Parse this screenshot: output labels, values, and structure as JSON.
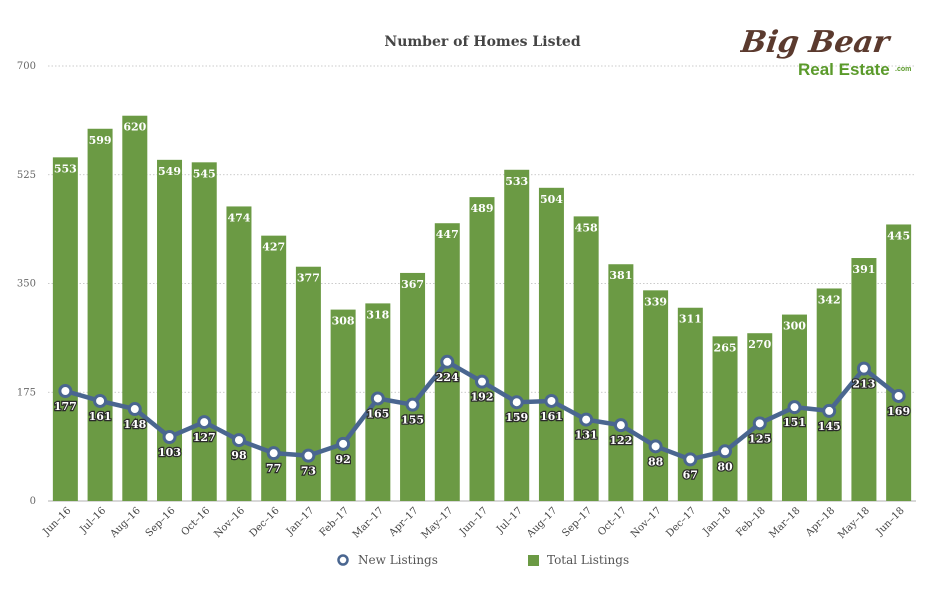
{
  "colors": {
    "bar": "#6b9a44",
    "line": "#4a6690",
    "point_fill": "#ffffff",
    "grid": "#bbbbbb",
    "logo_dark": "#5b3a2e",
    "logo_green": "#5a9a2a"
  },
  "logo": {
    "line1": "Big Bear",
    "line2": "Real Estate",
    "suffix": ".com"
  },
  "chart_data": {
    "type": "bar",
    "title": "Number of Homes Listed",
    "xlabel": "",
    "ylabel": "",
    "ylim": [
      0,
      700
    ],
    "yticks": [
      0,
      175,
      350,
      525,
      700
    ],
    "grid": true,
    "legend_position": "bottom",
    "categories": [
      "Jun–16",
      "Jul–16",
      "Aug–16",
      "Sep–16",
      "Oct–16",
      "Nov–16",
      "Dec–16",
      "Jan–17",
      "Feb–17",
      "Mar–17",
      "Apr–17",
      "May–17",
      "Jun–17",
      "Jul–17",
      "Aug–17",
      "Sep–17",
      "Oct–17",
      "Nov–17",
      "Dec–17",
      "Jan–18",
      "Feb–18",
      "Mar–18",
      "Apr–18",
      "May–18",
      "Jun–18"
    ],
    "series": [
      {
        "name": "Total Listings",
        "type": "bar",
        "values": [
          553,
          599,
          620,
          549,
          545,
          474,
          427,
          377,
          308,
          318,
          367,
          447,
          489,
          533,
          504,
          458,
          381,
          339,
          311,
          265,
          270,
          300,
          342,
          391,
          445
        ]
      },
      {
        "name": "New Listings",
        "type": "line",
        "values": [
          177,
          161,
          148,
          103,
          127,
          98,
          77,
          73,
          92,
          165,
          155,
          224,
          192,
          159,
          161,
          131,
          122,
          88,
          67,
          80,
          125,
          151,
          145,
          213,
          169
        ]
      }
    ]
  }
}
